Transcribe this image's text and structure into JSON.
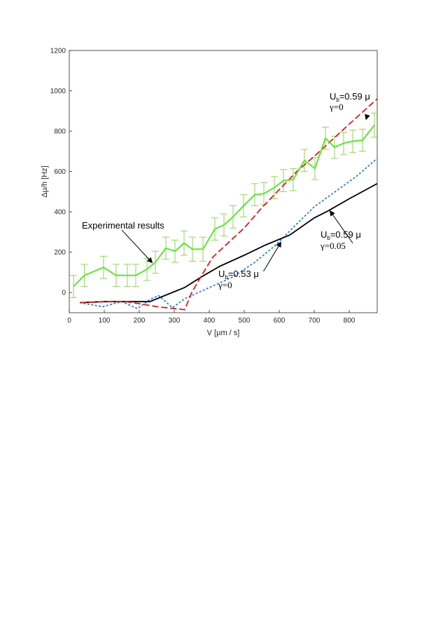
{
  "chart_data": {
    "type": "line",
    "title": "",
    "xlabel": "V [μm / s]",
    "ylabel": "Δμ/h [Hz]",
    "xlim": [
      0,
      880
    ],
    "ylim": [
      -100,
      1200
    ],
    "xticks": [
      0,
      100,
      200,
      300,
      400,
      500,
      600,
      700,
      800
    ],
    "yticks": [
      0,
      200,
      400,
      600,
      800,
      1000,
      1200
    ],
    "xtick_labels": [
      "0",
      "100",
      "200",
      "300",
      "400",
      "500",
      "600",
      "700",
      "800"
    ],
    "ytick_labels": [
      "0",
      "200",
      "400",
      "600",
      "800",
      "1000",
      "1200"
    ],
    "grid": false,
    "legend": "none",
    "colors": {
      "experimental": "#5ce62e",
      "u059_g0": "#dd1a1a",
      "u059_g005": "#000000",
      "u053_g0": "#2e7fe0",
      "errorbar": "#8ed65a"
    },
    "series": [
      {
        "name": "Experimental results",
        "x": [
          12,
          43,
          98,
          134,
          166,
          190,
          222,
          246,
          276,
          302,
          328,
          352,
          382,
          416,
          442,
          468,
          498,
          530,
          556,
          586,
          612,
          640,
          672,
          702,
          732,
          758,
          784,
          810,
          838,
          872
        ],
        "y": [
          30,
          85,
          125,
          85,
          85,
          85,
          115,
          150,
          220,
          205,
          245,
          215,
          215,
          315,
          335,
          375,
          430,
          485,
          490,
          520,
          555,
          560,
          655,
          615,
          765,
          720,
          740,
          750,
          755,
          830
        ],
        "err": [
          55,
          55,
          55,
          55,
          55,
          55,
          55,
          55,
          55,
          55,
          60,
          60,
          60,
          55,
          55,
          55,
          55,
          55,
          55,
          55,
          55,
          55,
          55,
          55,
          55,
          55,
          55,
          55,
          55,
          60
        ]
      },
      {
        "name": "U_b=0.59 μ, γ=0",
        "x": [
          30,
          100,
          160,
          200,
          250,
          330,
          350,
          380,
          410,
          450,
          500,
          550,
          600,
          650,
          700,
          750,
          800,
          880
        ],
        "y": [
          -50,
          -45,
          -45,
          -55,
          -70,
          -85,
          0,
          90,
          175,
          240,
          320,
          420,
          510,
          600,
          675,
          755,
          835,
          960
        ]
      },
      {
        "name": "U_b=0.59 μ, γ=0.05",
        "x": [
          30,
          100,
          150,
          200,
          230,
          330,
          380,
          430,
          500,
          560,
          630,
          700,
          740,
          800,
          880
        ],
        "y": [
          -50,
          -45,
          -45,
          -45,
          -45,
          25,
          80,
          130,
          185,
          235,
          285,
          370,
          405,
          465,
          540
        ]
      },
      {
        "name": "U_b=0.53 μ, γ=0",
        "x": [
          30,
          95,
          150,
          195,
          230,
          255,
          295,
          330,
          420,
          470,
          530,
          590,
          650,
          700,
          760,
          820,
          880
        ],
        "y": [
          -50,
          -70,
          -45,
          -80,
          -35,
          -15,
          -75,
          -30,
          40,
          80,
          150,
          235,
          340,
          425,
          500,
          575,
          665
        ]
      }
    ],
    "annotations": [
      {
        "id": "exp",
        "text": "Experimental results",
        "from": [
          150,
          310
        ],
        "to": [
          237,
          148
        ]
      },
      {
        "id": "a1_main",
        "text": "U",
        "sub": "b",
        "tail": "=0.59 μ",
        "gamma": "γ=0",
        "from": [
          850,
          870
        ],
        "to": [
          848,
          858
        ]
      },
      {
        "id": "a2_main",
        "text": "U",
        "sub": "b",
        "tail": "=0.59 μ",
        "gamma": "γ=0.05",
        "from": [
          810,
          245
        ],
        "to": [
          745,
          405
        ]
      },
      {
        "id": "a3_main",
        "text": "U",
        "sub": "b",
        "tail": "=0.53 μ",
        "gamma": "γ=0",
        "from": [
          555,
          105
        ],
        "to": [
          605,
          250
        ]
      }
    ]
  }
}
